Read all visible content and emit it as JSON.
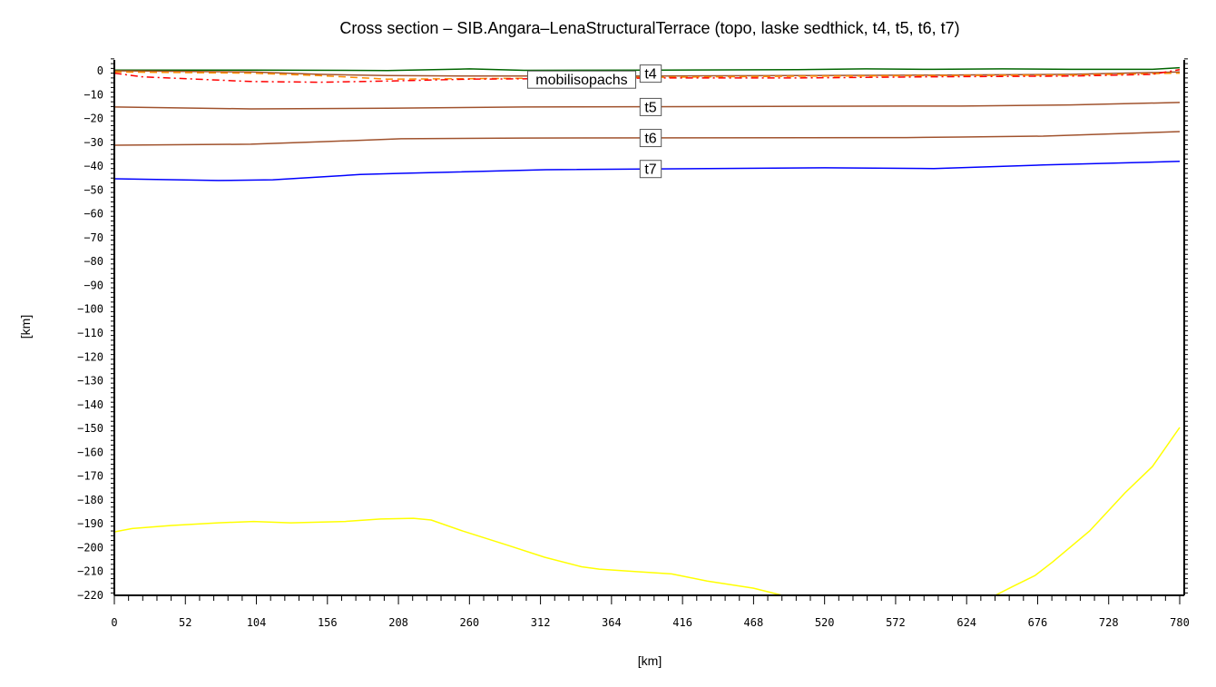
{
  "chart_data": {
    "type": "line",
    "title": "Cross section – SIB.Angara–LenaStructuralTerrace (topo, laske sedthick, t4, t5, t6, t7)",
    "xlabel": "[km]",
    "ylabel": "[km]",
    "xlim": [
      0,
      785
    ],
    "ylim": [
      -220,
      5
    ],
    "xticks": [
      0,
      52,
      104,
      156,
      208,
      260,
      312,
      364,
      416,
      468,
      520,
      572,
      624,
      676,
      728,
      780
    ],
    "yticks": [
      0,
      -10,
      -20,
      -30,
      -40,
      -50,
      -60,
      -70,
      -80,
      -90,
      -100,
      -110,
      -120,
      -130,
      -140,
      -150,
      -160,
      -170,
      -180,
      -190,
      -200,
      -210,
      -220
    ],
    "ytick_labels": [
      "0",
      "−10",
      "−20",
      "−30",
      "−40",
      "−50",
      "−60",
      "−70",
      "−80",
      "−90",
      "−100",
      "−110",
      "−120",
      "−130",
      "−140",
      "−150",
      "−160",
      "−170",
      "−180",
      "−190",
      "−200",
      "−210",
      "−220"
    ],
    "grid": false,
    "series": [
      {
        "name": "topo",
        "color": "#006400",
        "style": "solid",
        "x": [
          0,
          100,
          200,
          260,
          300,
          400,
          500,
          550,
          600,
          650,
          700,
          760,
          780
        ],
        "y": [
          0.3,
          0.3,
          0.1,
          0.8,
          0.2,
          0.3,
          0.5,
          0.8,
          0.6,
          0.8,
          0.6,
          0.6,
          1.3
        ]
      },
      {
        "name": "t4",
        "color": "#a0522d",
        "style": "solid",
        "x": [
          0,
          100,
          150,
          200,
          260,
          400,
          500,
          600,
          700,
          780
        ],
        "y": [
          0,
          -0.5,
          -1.5,
          -2,
          -2.2,
          -2.2,
          -2,
          -1.8,
          -1.5,
          -0.5
        ]
      },
      {
        "label": "laske sedthick",
        "color": "#ff8c00",
        "style": "dashed",
        "x": [
          0,
          100,
          150,
          200,
          260,
          400,
          500,
          600,
          700,
          780
        ],
        "y": [
          -0.5,
          -1,
          -2,
          -3.5,
          -3.3,
          -2.7,
          -2.3,
          -2,
          -1.8,
          -1
        ]
      },
      {
        "label": "mobil isopachs",
        "color": "#ff0000",
        "style": "dashdot",
        "x": [
          0,
          20,
          60,
          100,
          150,
          200,
          260,
          400,
          500,
          600,
          700,
          760,
          780
        ],
        "y": [
          -1,
          -2.5,
          -3.5,
          -4.5,
          -4.8,
          -4.3,
          -3.5,
          -3,
          -3,
          -2.5,
          -2.2,
          -1.5,
          0.5
        ]
      },
      {
        "name": "t5",
        "color": "#a0522d",
        "style": "solid",
        "x": [
          0,
          100,
          200,
          300,
          580,
          620,
          700,
          780
        ],
        "y": [
          -15.2,
          -16,
          -15.7,
          -15.2,
          -14.8,
          -14.8,
          -14.3,
          -13.3
        ]
      },
      {
        "name": "t6",
        "color": "#a0522d",
        "style": "solid",
        "x": [
          0,
          100,
          150,
          210,
          300,
          580,
          620,
          680,
          780
        ],
        "y": [
          -31.2,
          -30.8,
          -29.8,
          -28.5,
          -28.2,
          -28,
          -27.8,
          -27.4,
          -25.5
        ]
      },
      {
        "name": "t7",
        "color": "#0000ff",
        "style": "solid",
        "x": [
          0,
          76,
          116,
          180,
          210,
          316,
          520,
          600,
          680,
          780
        ],
        "y": [
          -45.3,
          -46,
          -45.7,
          -43.5,
          -43,
          -41.5,
          -40.7,
          -41,
          -39.5,
          -38
        ]
      },
      {
        "color": "#ffff00",
        "style": "solid",
        "x": [
          0,
          13,
          42,
          76,
          102,
          129,
          169,
          195,
          219,
          232,
          255,
          288,
          315,
          342,
          355,
          381,
          408,
          434,
          468,
          489
        ],
        "y": [
          -193.4,
          -192,
          -190.7,
          -189.6,
          -189,
          -189.6,
          -189,
          -188,
          -187.7,
          -188.4,
          -193,
          -199,
          -204,
          -208,
          -209,
          -210,
          -211,
          -214,
          -217,
          -220
        ]
      },
      {
        "color": "#ffff00",
        "style": "solid",
        "x": [
          645,
          657,
          674,
          687,
          714,
          740,
          760,
          780
        ],
        "y": [
          -220,
          -216.5,
          -211.7,
          -206,
          -193,
          -177,
          -166,
          -149.6
        ]
      }
    ],
    "annotations": [
      {
        "text": "t4",
        "x": 390,
        "y": -1
      },
      {
        "text": "mobilisopachs",
        "x": 390,
        "y": -3.5
      },
      {
        "text": "t5",
        "x": 390,
        "y": -15
      },
      {
        "text": "t6",
        "x": 390,
        "y": -28
      },
      {
        "text": "t7",
        "x": 390,
        "y": -41
      }
    ]
  }
}
